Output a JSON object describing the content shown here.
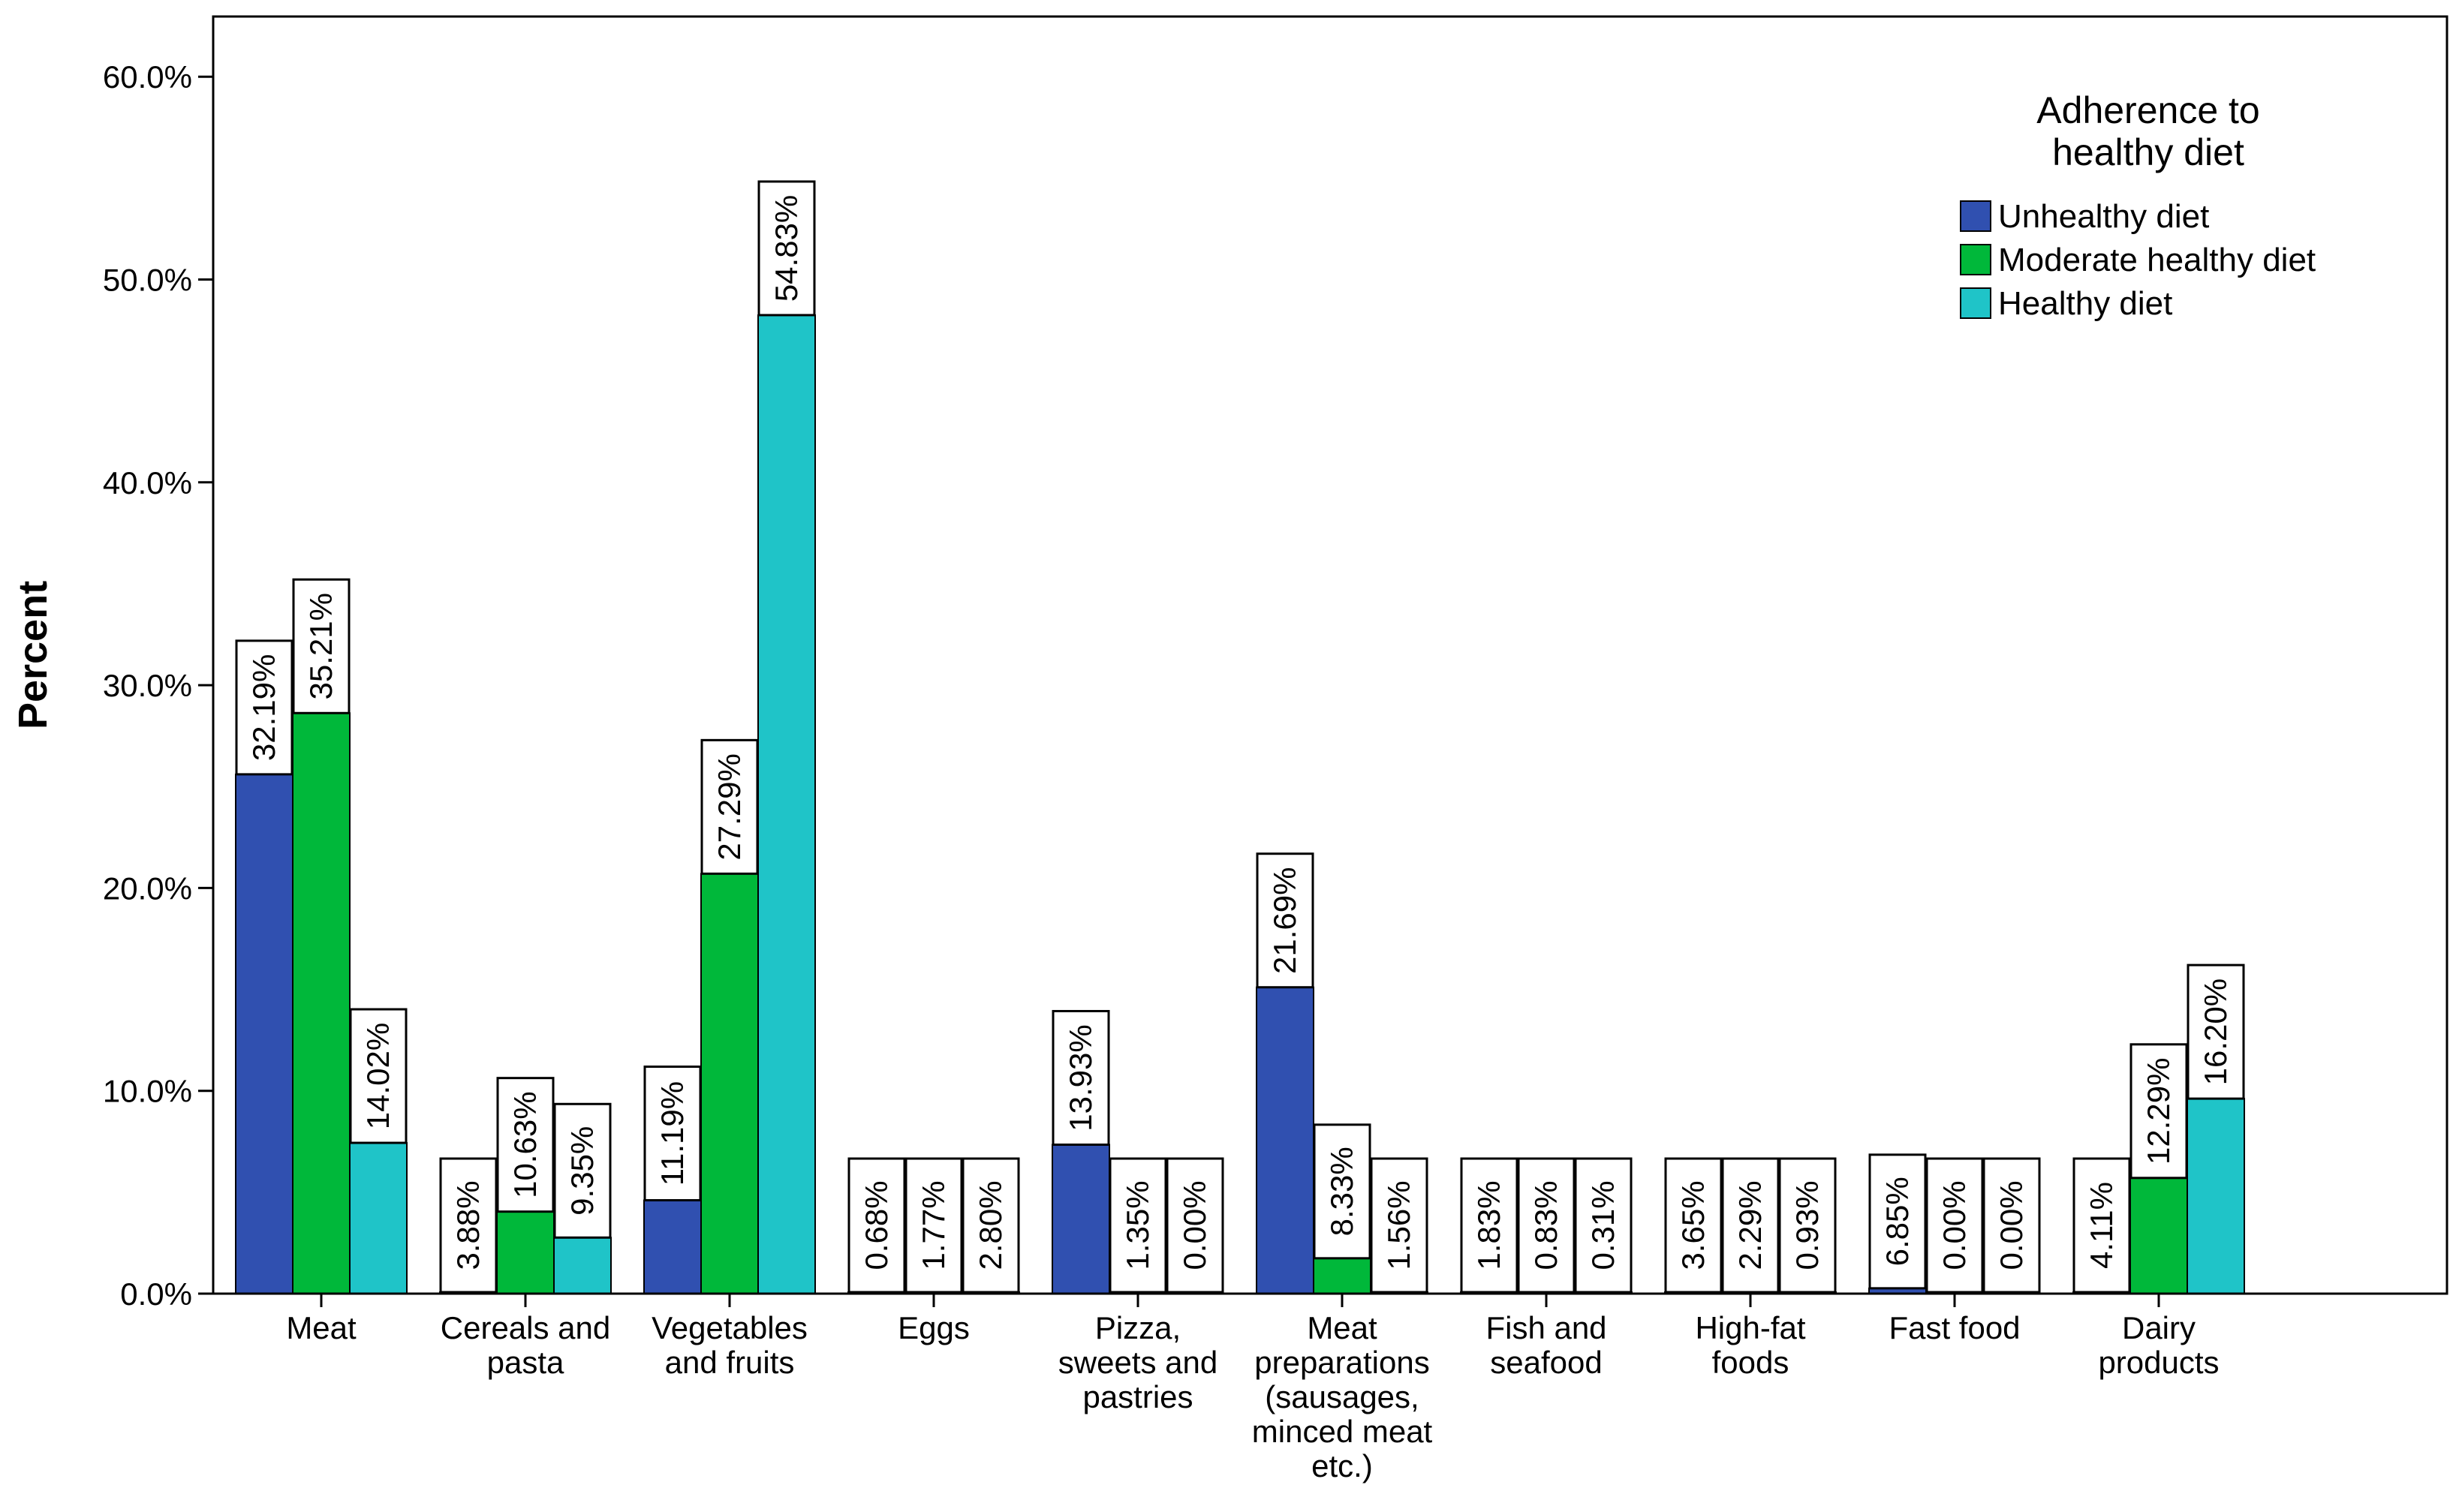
{
  "chart_data": {
    "type": "bar",
    "title": "",
    "xlabel": "",
    "ylabel": "Percent",
    "ylim": [
      0,
      62
    ],
    "yticks": [
      "0.0%",
      "10.0%",
      "20.0%",
      "30.0%",
      "40.0%",
      "50.0%",
      "60.0%"
    ],
    "ytick_values": [
      0,
      10,
      20,
      30,
      40,
      50,
      60
    ],
    "categories": [
      [
        "Meat"
      ],
      [
        "Cereals and",
        "pasta"
      ],
      [
        "Vegetables",
        "and fruits"
      ],
      [
        "Eggs"
      ],
      [
        "Pizza,",
        "sweets and",
        "pastries"
      ],
      [
        "Meat",
        "preparations",
        "(sausages,",
        "minced meat",
        "etc.)"
      ],
      [
        "Fish and",
        "seafood"
      ],
      [
        "High-fat",
        "foods"
      ],
      [
        "Fast food"
      ],
      [
        "Dairy",
        "products"
      ]
    ],
    "legend": {
      "title_lines": [
        "Adherence to",
        "healthy diet"
      ],
      "position": "top-right"
    },
    "series": [
      {
        "name": "Unhealthy diet",
        "color": "#3050B0",
        "values": [
          32.19,
          3.88,
          11.19,
          0.68,
          13.93,
          21.69,
          1.83,
          3.65,
          6.85,
          4.11
        ],
        "labels": [
          "32.19%",
          "3.88%",
          "11.19%",
          "0.68%",
          "13.93%",
          "21.69%",
          "1.83%",
          "3.65%",
          "6.85%",
          "4.11%"
        ]
      },
      {
        "name": "Moderate healthy diet",
        "color": "#00B83A",
        "values": [
          35.21,
          10.63,
          27.29,
          1.77,
          1.35,
          8.33,
          0.83,
          2.29,
          0.0,
          12.29
        ],
        "labels": [
          "35.21%",
          "10.63%",
          "27.29%",
          "1.77%",
          "1.35%",
          "8.33%",
          "0.83%",
          "2.29%",
          "0.00%",
          "12.29%"
        ]
      },
      {
        "name": "Healthy diet",
        "color": "#1FC4C8",
        "values": [
          14.02,
          9.35,
          54.83,
          2.8,
          0.0,
          1.56,
          0.31,
          0.93,
          0.0,
          16.2
        ],
        "labels": [
          "14.02%",
          "9.35%",
          "54.83%",
          "2.80%",
          "0.00%",
          "1.56%",
          "0.31%",
          "0.93%",
          "0.00%",
          "16.20%"
        ]
      }
    ]
  }
}
